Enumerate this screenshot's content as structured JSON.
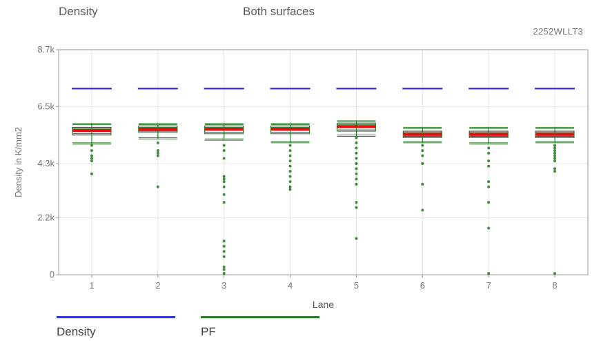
{
  "header": {
    "left_label": "Density",
    "center_label": "Both surfaces",
    "run_id": "2252WLLT3"
  },
  "colors": {
    "density": "#4a2ee0",
    "pf": "#1f7a1f",
    "median": "#e01010",
    "box": "#2a7a2a",
    "grid": "#e6e6e6",
    "axis": "#999999"
  },
  "legend": [
    {
      "name": "Density",
      "color": "#3333dd"
    },
    {
      "name": "PF",
      "color": "#2a7a2a"
    }
  ],
  "chart_data": {
    "type": "box",
    "xlabel": "Lane",
    "ylabel": "Density in K/mm2",
    "ylim": [
      0,
      8.7
    ],
    "yticks": [
      0,
      2.2,
      4.3,
      6.5,
      8.7
    ],
    "ytick_labels": [
      "0",
      "2.2k",
      "4.3k",
      "6.5k",
      "8.7k"
    ],
    "categories": [
      "1",
      "2",
      "3",
      "4",
      "5",
      "6",
      "7",
      "8"
    ],
    "density_target": [
      7.2,
      7.2,
      7.2,
      7.2,
      7.2,
      7.2,
      7.2,
      7.2
    ],
    "series": [
      {
        "name": "Density",
        "median": [
          5.6,
          5.65,
          5.65,
          5.65,
          5.75,
          5.45,
          5.45,
          5.45
        ],
        "q1": [
          5.45,
          5.55,
          5.5,
          5.5,
          5.6,
          5.35,
          5.35,
          5.35
        ],
        "q3": [
          5.7,
          5.75,
          5.75,
          5.75,
          5.85,
          5.55,
          5.55,
          5.55
        ],
        "whisker_low": [
          5.1,
          5.3,
          5.25,
          5.15,
          5.4,
          5.15,
          5.1,
          5.15
        ],
        "whisker_high": [
          5.85,
          5.85,
          5.85,
          5.85,
          5.95,
          5.7,
          5.7,
          5.7
        ]
      },
      {
        "name": "PF",
        "median": [
          5.55,
          5.6,
          5.6,
          5.6,
          5.7,
          5.4,
          5.4,
          5.4
        ],
        "q1": [
          5.4,
          5.5,
          5.45,
          5.45,
          5.55,
          5.3,
          5.3,
          5.3
        ],
        "q3": [
          5.65,
          5.7,
          5.7,
          5.7,
          5.8,
          5.5,
          5.5,
          5.5
        ],
        "whisker_low": [
          5.05,
          5.25,
          5.2,
          5.1,
          5.35,
          5.1,
          5.05,
          5.1
        ],
        "whisker_high": [
          5.8,
          5.8,
          5.8,
          5.8,
          5.9,
          5.65,
          5.65,
          5.65
        ]
      }
    ],
    "outliers": [
      [
        5.0,
        4.8,
        4.6,
        4.5,
        4.4,
        3.9
      ],
      [
        5.1,
        4.8,
        4.7,
        4.6,
        3.4
      ],
      [
        5.0,
        4.8,
        4.5,
        3.8,
        3.7,
        3.6,
        3.4,
        3.1,
        2.8,
        1.3,
        1.1,
        0.9,
        0.7,
        0.3,
        0.2,
        0.05
      ],
      [
        5.0,
        4.8,
        4.6,
        4.4,
        4.2,
        4.0,
        3.8,
        3.6,
        3.4,
        3.3
      ],
      [
        5.3,
        5.1,
        4.9,
        4.7,
        4.5,
        4.3,
        4.1,
        3.9,
        3.7,
        3.5,
        2.8,
        2.6,
        1.4
      ],
      [
        5.0,
        4.8,
        4.6,
        4.3,
        3.5,
        2.5
      ],
      [
        4.9,
        4.7,
        4.4,
        4.2,
        3.6,
        3.4,
        2.8,
        1.8,
        0.05
      ],
      [
        5.0,
        4.9,
        4.8,
        4.7,
        4.6,
        4.5,
        4.4,
        4.1,
        4.0,
        0.05
      ]
    ]
  }
}
